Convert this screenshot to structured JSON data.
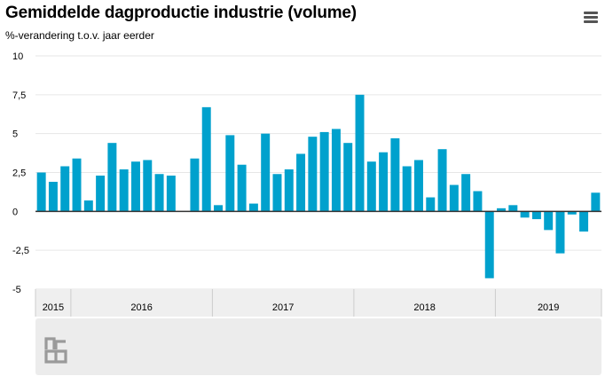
{
  "header": {
    "title": "Gemiddelde dagproductie industrie (volume)",
    "subtitle": "%-verandering t.o.v. jaar eerder",
    "menu_icon": "hamburger-menu-icon"
  },
  "colors": {
    "bar": "#00a1cd",
    "grid": "#e6e6e6",
    "zero_line": "#333333",
    "axis_band": "#efefef",
    "navigator": "#ececec",
    "logo": "#9a9a9a"
  },
  "navigator": {
    "logo_icon": "cbs-logo-icon"
  },
  "chart_data": {
    "type": "bar",
    "title": "Gemiddelde dagproductie industrie (volume)",
    "subtitle": "%-verandering t.o.v. jaar eerder",
    "ylim": [
      -5,
      10
    ],
    "yticks": [
      10,
      7.5,
      5,
      2.5,
      0,
      -2.5,
      -5
    ],
    "ytick_labels": [
      "10",
      "7,5",
      "5",
      "2,5",
      "0",
      "-2,5",
      "-5"
    ],
    "grid": true,
    "year_labels": [
      {
        "label": "2015",
        "months": 3
      },
      {
        "label": "2016",
        "months": 12
      },
      {
        "label": "2017",
        "months": 12
      },
      {
        "label": "2018",
        "months": 12
      },
      {
        "label": "2019",
        "months": 9
      }
    ],
    "series": [
      {
        "values": [
          2.5,
          1.9,
          2.9,
          3.4,
          0.7,
          2.3,
          4.4,
          2.7,
          3.2,
          3.3,
          2.4,
          2.3,
          null,
          3.4,
          6.7,
          0.4,
          4.9,
          3.0,
          0.5,
          5.0,
          2.4,
          2.7,
          3.7,
          4.8,
          5.1,
          5.3,
          4.4,
          7.5,
          3.2,
          3.8,
          4.7,
          2.9,
          3.3,
          0.9,
          4.0,
          1.7,
          2.4,
          1.3,
          -4.3,
          0.2,
          0.4,
          -0.4,
          -0.5,
          -1.2,
          -2.7,
          -0.2,
          -1.3,
          1.2
        ]
      }
    ]
  }
}
